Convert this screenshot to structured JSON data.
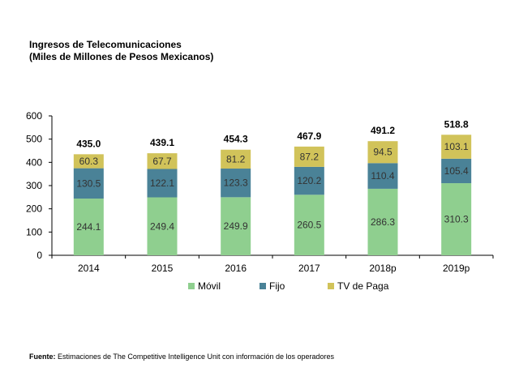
{
  "chart_data": {
    "type": "bar",
    "stacked": true,
    "title": "Ingresos de Telecomunicaciones",
    "subtitle": "(Miles de Millones de Pesos Mexicanos)",
    "categories": [
      "2014",
      "2015",
      "2016",
      "2017",
      "2018p",
      "2019p"
    ],
    "series": [
      {
        "name": "Móvil",
        "color": "#8fcf8f",
        "values": [
          "244.1",
          "249.4",
          "249.9",
          "260.5",
          "286.3",
          "310.3"
        ]
      },
      {
        "name": "Fijo",
        "color": "#4a8297",
        "values": [
          "130.5",
          "122.1",
          "123.3",
          "120.2",
          "110.4",
          "105.4"
        ]
      },
      {
        "name": "TV de Paga",
        "color": "#d1c35a",
        "values": [
          "60.3",
          "67.7",
          "81.2",
          "87.2",
          "94.5",
          "103.1"
        ]
      }
    ],
    "totals": [
      "435.0",
      "439.1",
      "454.3",
      "467.9",
      "491.2",
      "518.8"
    ],
    "ylim": [
      0,
      600
    ],
    "yticks": [
      "0",
      "100",
      "200",
      "300",
      "400",
      "500",
      "600"
    ],
    "grid": false,
    "legend": "bottom"
  },
  "source": {
    "label": "Fuente:",
    "text": "Estimaciones de The Competitive Intelligence Unit con información de los operadores"
  }
}
